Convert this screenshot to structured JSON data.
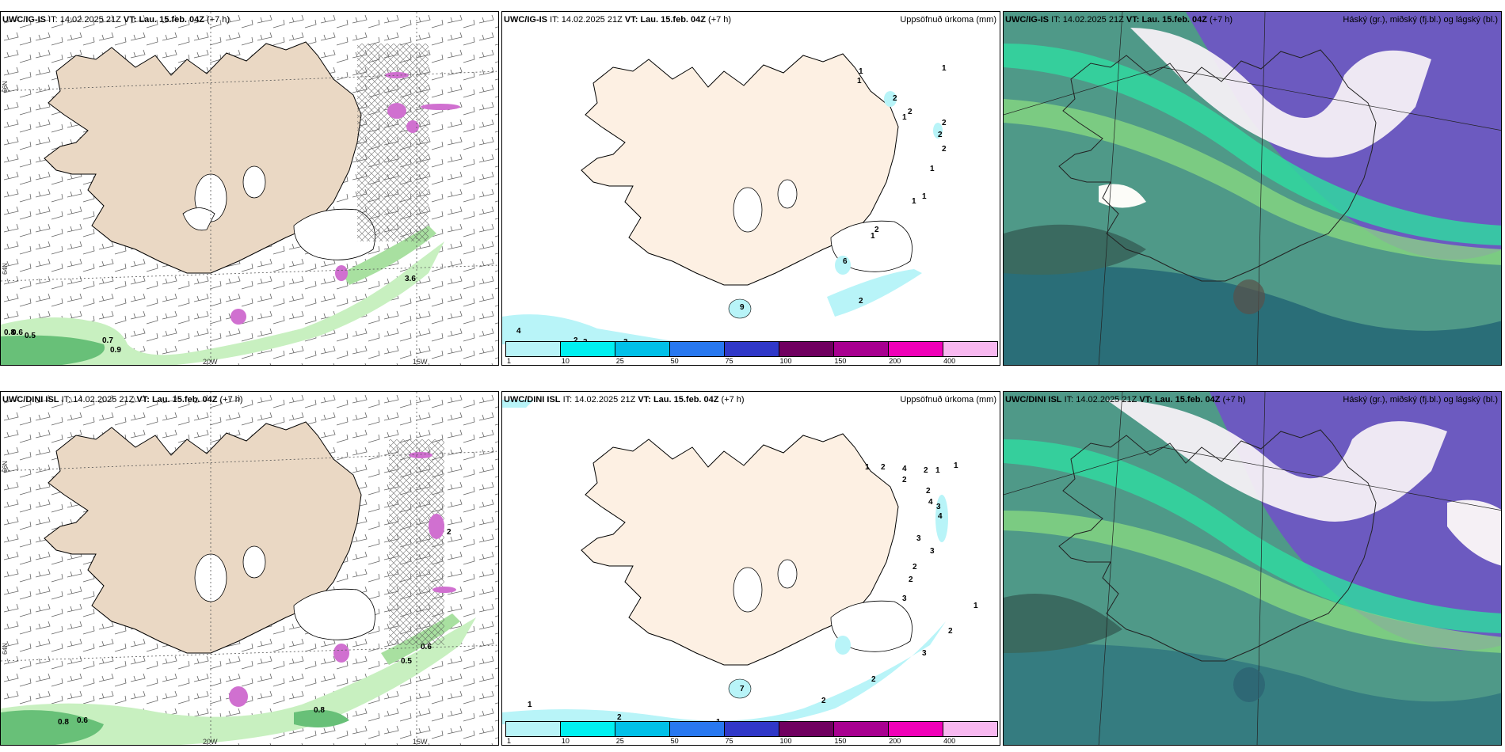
{
  "rows": [
    {
      "model": "UWC/IG-IS",
      "it_label": "IT:",
      "it_value": "14.02.2025 21Z",
      "vt_label": "VT:",
      "vt_value": "Lau. 15.feb. 04Z",
      "lead": "(+7 h)",
      "panel1_labels": [
        "3.6",
        "0.8",
        "0.6",
        "0.5",
        "0.7",
        "0.9"
      ],
      "panel2_labels": [
        "1",
        "1",
        "1",
        "2",
        "1",
        "2",
        "2",
        "2",
        "2",
        "1",
        "1",
        "1",
        "1",
        "2",
        "6",
        "9",
        "2",
        "4",
        "2",
        "2",
        "3"
      ]
    },
    {
      "model": "UWC/DINI ISL",
      "it_label": "IT:",
      "it_value": "14.02.2025 21Z",
      "vt_label": "VT:",
      "vt_value": "Lau. 15.feb. 04Z",
      "lead": "(+7 h)",
      "panel1_labels": [
        "0.6",
        "0.5",
        "0.8",
        "0.8",
        "0.6",
        "2"
      ],
      "panel2_labels": [
        "1",
        "1",
        "2",
        "4",
        "2",
        "1",
        "2",
        "2",
        "4",
        "3",
        "4",
        "3",
        "3",
        "2",
        "2",
        "3",
        "1",
        "2",
        "3",
        "2",
        "2",
        "1",
        "2",
        "1",
        "7"
      ]
    }
  ],
  "precip_title": "Uppsöfnuð úrkoma (mm)",
  "cloud_title": "Háský (gr.), miðský (fj.bl.) og lágský (bl.)",
  "lon_labels": [
    "20W",
    "15W"
  ],
  "lat_labels": [
    "66N",
    "64N"
  ],
  "colorbar": {
    "ticks": [
      "1",
      "10",
      "25",
      "50",
      "75",
      "100",
      "150",
      "200",
      "400"
    ],
    "colors": [
      "#b8f4f8",
      "#00f0f0",
      "#00c0e8",
      "#2878f0",
      "#3038c8",
      "#700060",
      "#a80090",
      "#f000b8",
      "#f8b8f0"
    ]
  }
}
